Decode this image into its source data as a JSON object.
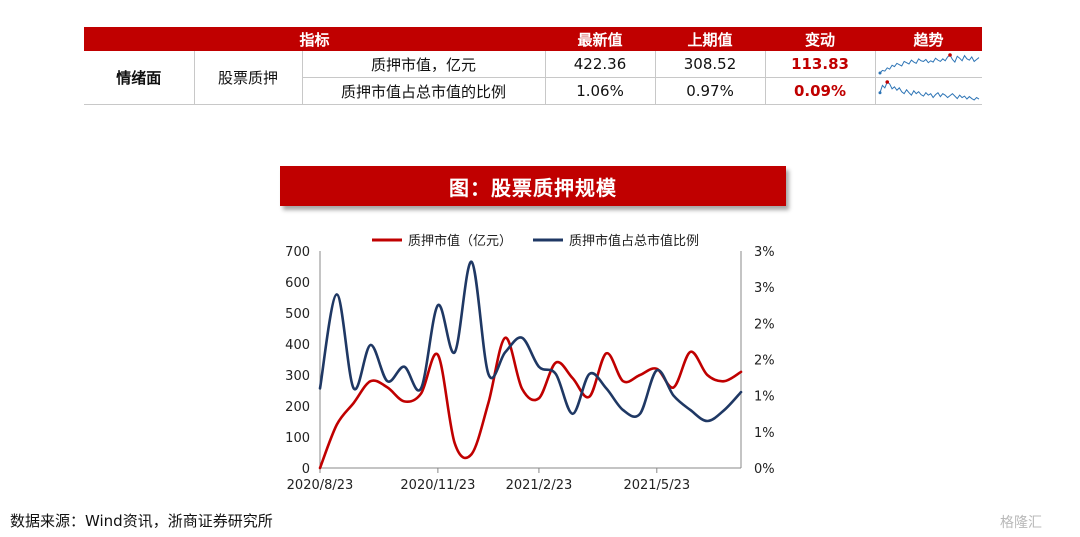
{
  "table": {
    "headers": [
      "指标",
      "最新值",
      "上期值",
      "变动",
      "趋势"
    ],
    "category": "情绪面",
    "subcategory": "股票质押",
    "rows": [
      {
        "name": "质押市值，亿元",
        "latest": "422.36",
        "previous": "308.52",
        "change": "113.83",
        "trend": [
          30,
          34,
          33,
          38,
          36,
          42,
          40,
          45,
          43,
          41,
          48,
          46,
          44,
          50,
          47,
          45,
          52,
          49,
          48,
          51,
          46,
          49,
          47,
          53,
          50,
          48,
          52,
          49,
          55,
          58,
          51,
          47,
          56,
          53,
          49,
          57,
          52,
          50,
          55,
          48,
          51,
          54
        ]
      },
      {
        "name": "质押市值占总市值的比例",
        "latest": "1.06%",
        "previous": "0.97%",
        "change": "0.09%",
        "trend": [
          40,
          55,
          50,
          62,
          58,
          48,
          52,
          45,
          50,
          42,
          38,
          46,
          40,
          35,
          44,
          38,
          42,
          36,
          33,
          40,
          35,
          38,
          30,
          36,
          40,
          32,
          38,
          35,
          30,
          34,
          38,
          33,
          28,
          35,
          30,
          33,
          27,
          32,
          28,
          25,
          30,
          27
        ]
      }
    ]
  },
  "chart_title": "图：股票质押规模",
  "chart_data": {
    "type": "line",
    "x": [
      "2020/8/23",
      "2020/9/6",
      "2020/9/20",
      "2020/10/4",
      "2020/10/18",
      "2020/11/1",
      "2020/11/15",
      "2020/11/29",
      "2020/12/13",
      "2020/12/27",
      "2021/1/10",
      "2021/1/24",
      "2021/2/7",
      "2021/2/21",
      "2021/3/7",
      "2021/3/21",
      "2021/4/4",
      "2021/4/18",
      "2021/5/2",
      "2021/5/16",
      "2021/5/30",
      "2021/6/13",
      "2021/6/27",
      "2021/7/11",
      "2021/7/25",
      "2021/8/8"
    ],
    "x_tick_labels": [
      "2020/8/23",
      "2020/11/23",
      "2021/2/23",
      "2021/5/23"
    ],
    "series": [
      {
        "name": "质押市值（亿元）",
        "axis": "left",
        "color": "#c00000",
        "values": [
          0,
          140,
          210,
          280,
          260,
          215,
          240,
          365,
          80,
          45,
          210,
          420,
          255,
          225,
          340,
          290,
          230,
          370,
          280,
          300,
          320,
          260,
          375,
          300,
          280,
          310
        ]
      },
      {
        "name": "质押市值占总市值比例",
        "axis": "right",
        "color": "#1f3864",
        "values": [
          1.1,
          2.4,
          1.1,
          1.7,
          1.2,
          1.4,
          1.1,
          2.25,
          1.6,
          2.85,
          1.3,
          1.6,
          1.8,
          1.4,
          1.3,
          0.75,
          1.3,
          1.1,
          0.8,
          0.75,
          1.35,
          1.0,
          0.8,
          0.65,
          0.8,
          1.05
        ]
      }
    ],
    "y_left": {
      "min": 0,
      "max": 700,
      "ticks": [
        0,
        100,
        200,
        300,
        400,
        500,
        600,
        700
      ]
    },
    "y_right": {
      "min": 0,
      "max": 3,
      "tick_labels": [
        "0%",
        "1%",
        "1%",
        "2%",
        "2%",
        "3%",
        "3%"
      ]
    },
    "legend_position": "top",
    "grid": false
  },
  "source": "数据来源：Wind资讯，浙商证券研究所",
  "watermark": "格隆汇"
}
